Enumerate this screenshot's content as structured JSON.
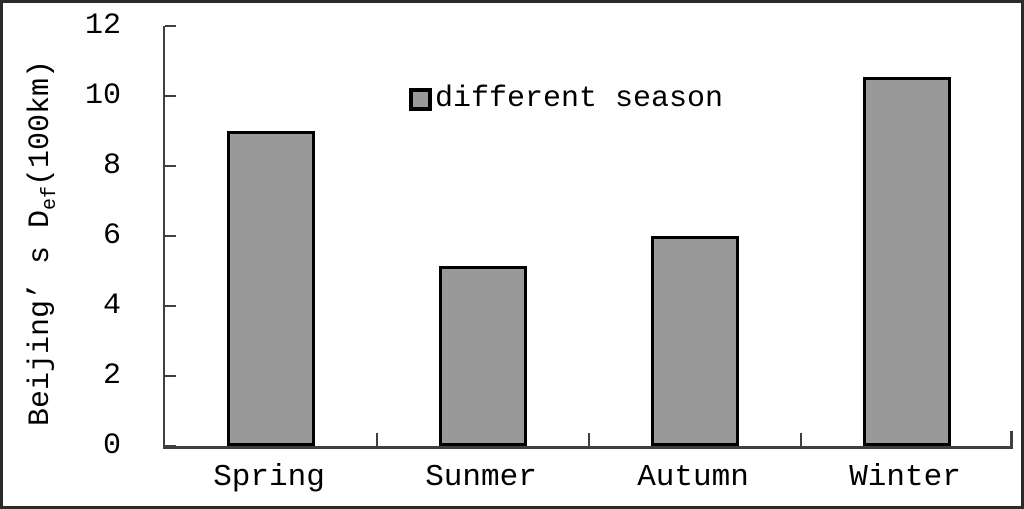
{
  "figure": {
    "y_axis_title": {
      "prefix": "Beijing’ s D",
      "sub": "ef",
      "suffix": "(100km)"
    }
  },
  "chart_data": {
    "type": "bar",
    "categories": [
      "Spring",
      "Sunmer",
      "Autumn",
      "Winter"
    ],
    "values": [
      9.0,
      5.15,
      6.0,
      10.55
    ],
    "title": "",
    "xlabel": "",
    "ylabel": "Beijing’ s Def(100km)",
    "ylim": [
      0,
      12
    ],
    "yticks": [
      0,
      2,
      4,
      6,
      8,
      10,
      12
    ],
    "legend": {
      "label": "different season",
      "position": "top-center-inside"
    },
    "grid": false,
    "tick_direction": "inside",
    "colors": {
      "bar_fill": "#999999",
      "bar_border": "#000000",
      "axis": "#404040",
      "text": "#000000",
      "figure_border": "#2b2b2b"
    }
  }
}
